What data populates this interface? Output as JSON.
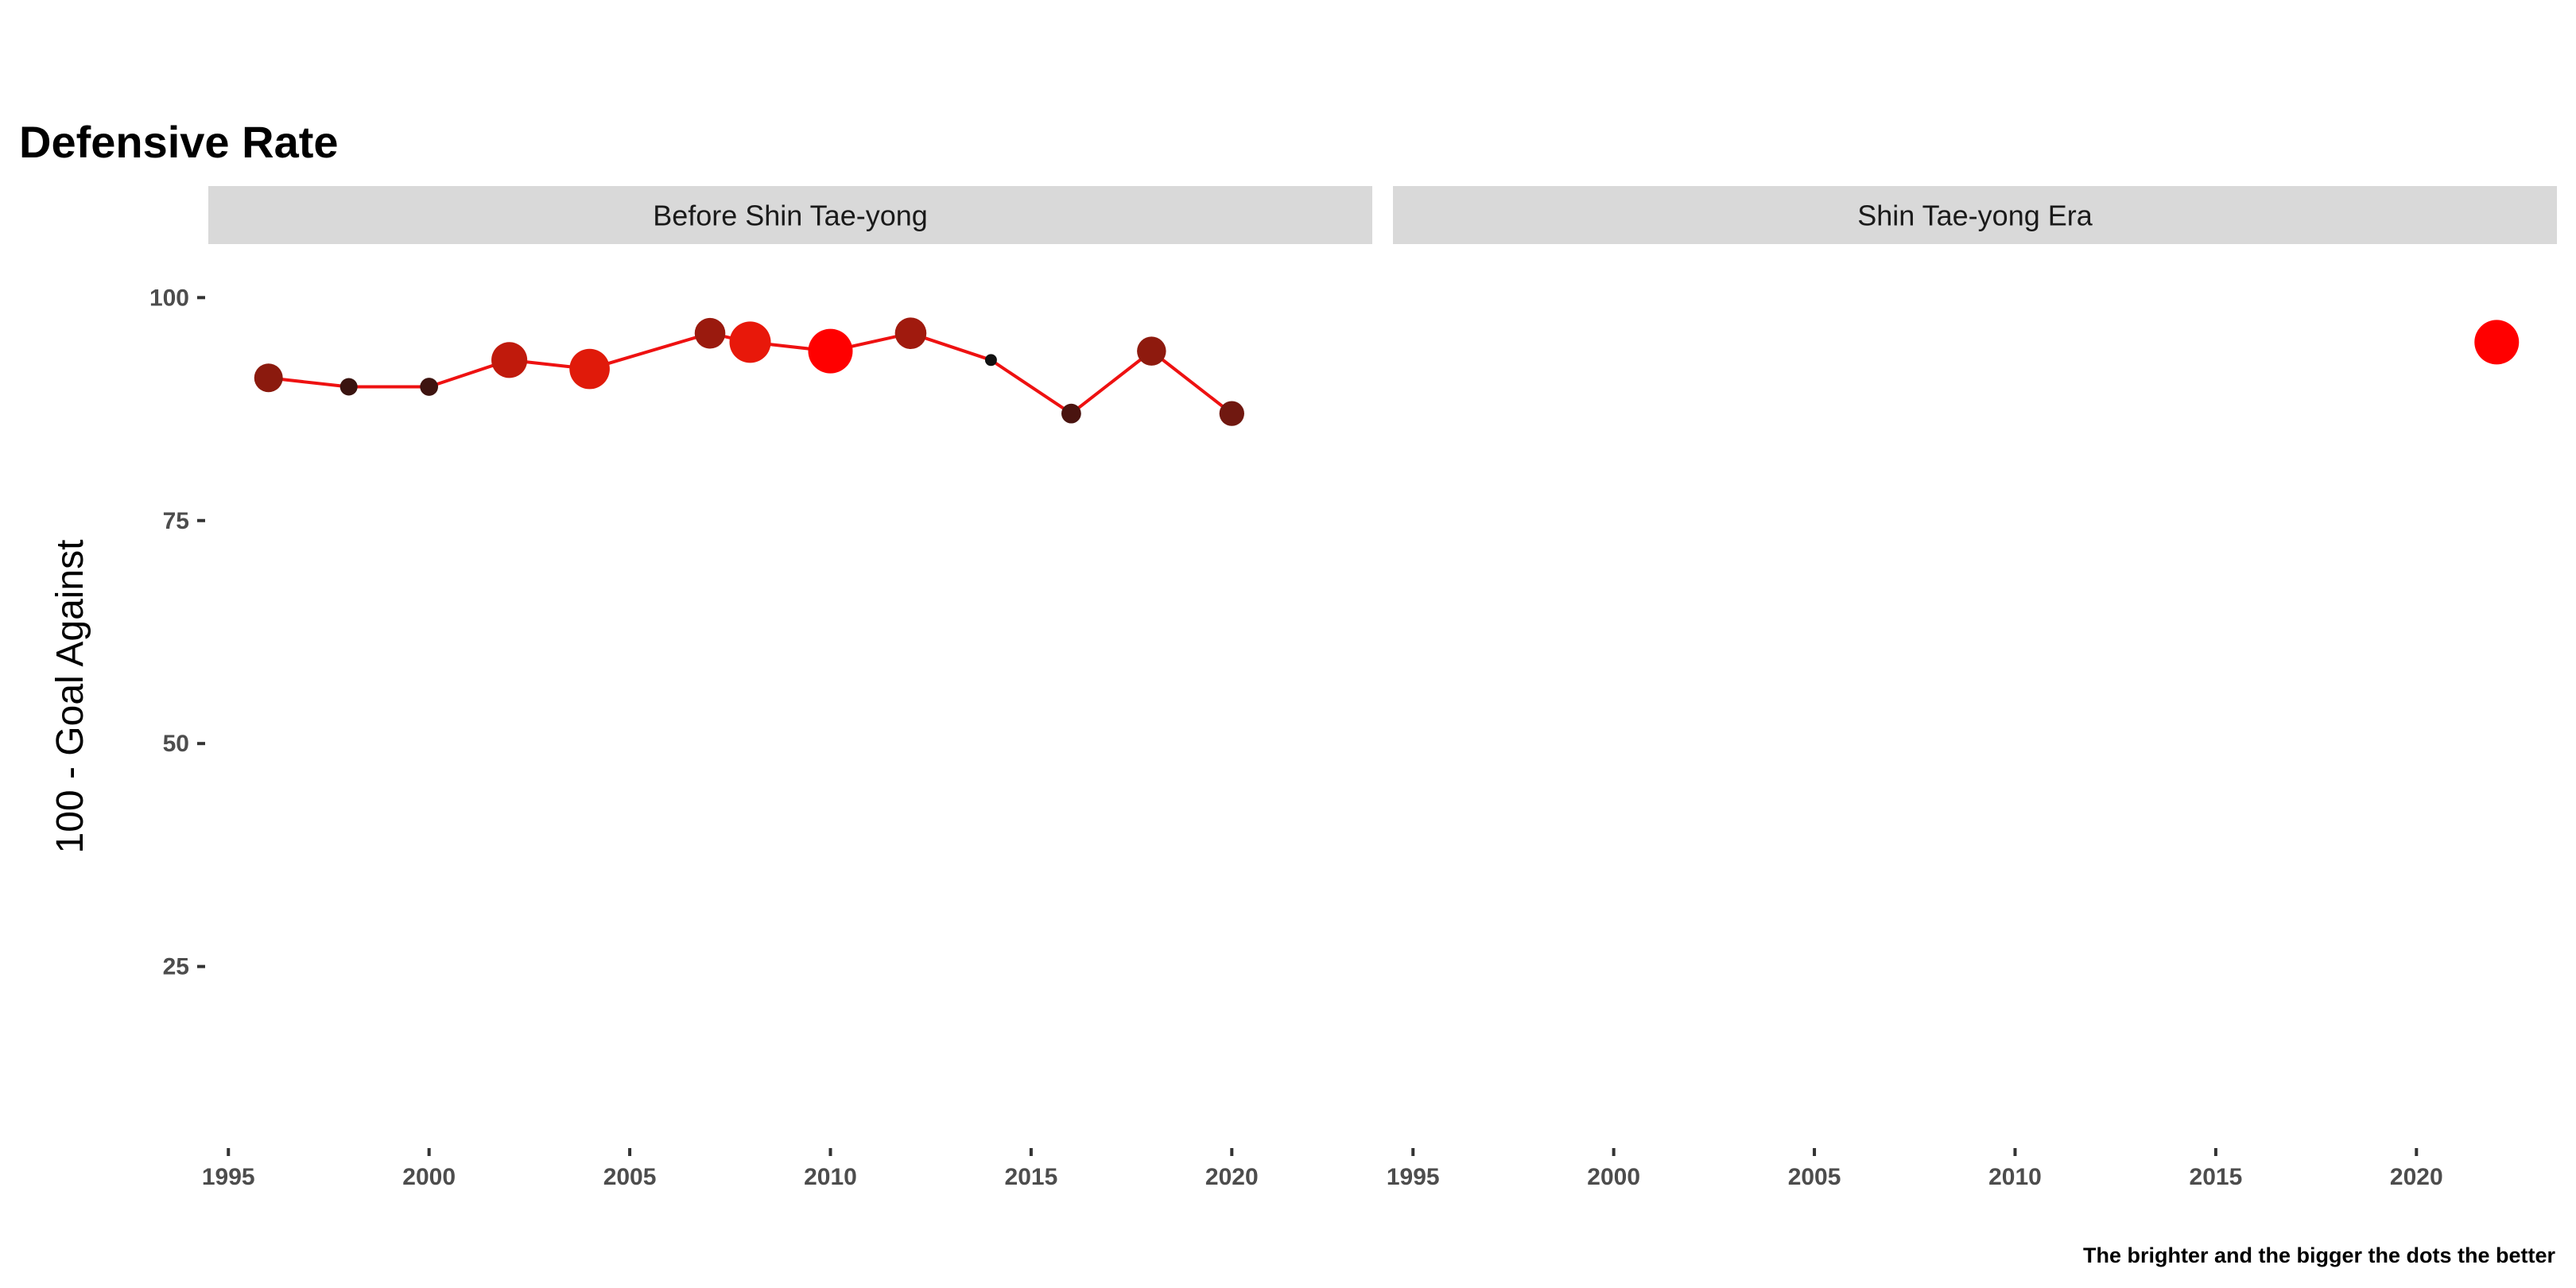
{
  "chart_data": {
    "type": "line",
    "title": "Defensive Rate",
    "ylabel": "100 - Goal Against",
    "xlabel": "",
    "caption": "The brighter and the bigger the dots the better",
    "ylim": [
      5,
      106
    ],
    "xlim": [
      1994.5,
      2023.5
    ],
    "y_ticks": [
      25,
      50,
      75,
      100
    ],
    "x_ticks": [
      1995,
      2000,
      2005,
      2010,
      2015,
      2020
    ],
    "grid": false,
    "line_color": "#ee1111",
    "facets": [
      {
        "label": "Before Shin Tae-yong",
        "points": [
          {
            "x": 1996,
            "y": 91,
            "color": "#8b1a0e"
          },
          {
            "x": 1998,
            "y": 90,
            "color": "#3a1410"
          },
          {
            "x": 2000,
            "y": 90,
            "color": "#3e1410"
          },
          {
            "x": 2002,
            "y": 93,
            "color": "#c01a0c"
          },
          {
            "x": 2004,
            "y": 92,
            "color": "#e01a0a"
          },
          {
            "x": 2007,
            "y": 96,
            "color": "#9a1a0e"
          },
          {
            "x": 2008,
            "y": 95,
            "color": "#e8180a"
          },
          {
            "x": 2010,
            "y": 94,
            "color": "#ff0000"
          },
          {
            "x": 2012,
            "y": 96,
            "color": "#a01a0e"
          },
          {
            "x": 2014,
            "y": 93,
            "color": "#111111"
          },
          {
            "x": 2016,
            "y": 87,
            "color": "#4a1410"
          },
          {
            "x": 2018,
            "y": 94,
            "color": "#8e1a0e"
          },
          {
            "x": 2020,
            "y": 87,
            "color": "#701810"
          }
        ]
      },
      {
        "label": "Shin Tae-yong Era",
        "points": [
          {
            "x": 2022,
            "y": 95,
            "color": "#ff0000"
          }
        ]
      }
    ]
  }
}
